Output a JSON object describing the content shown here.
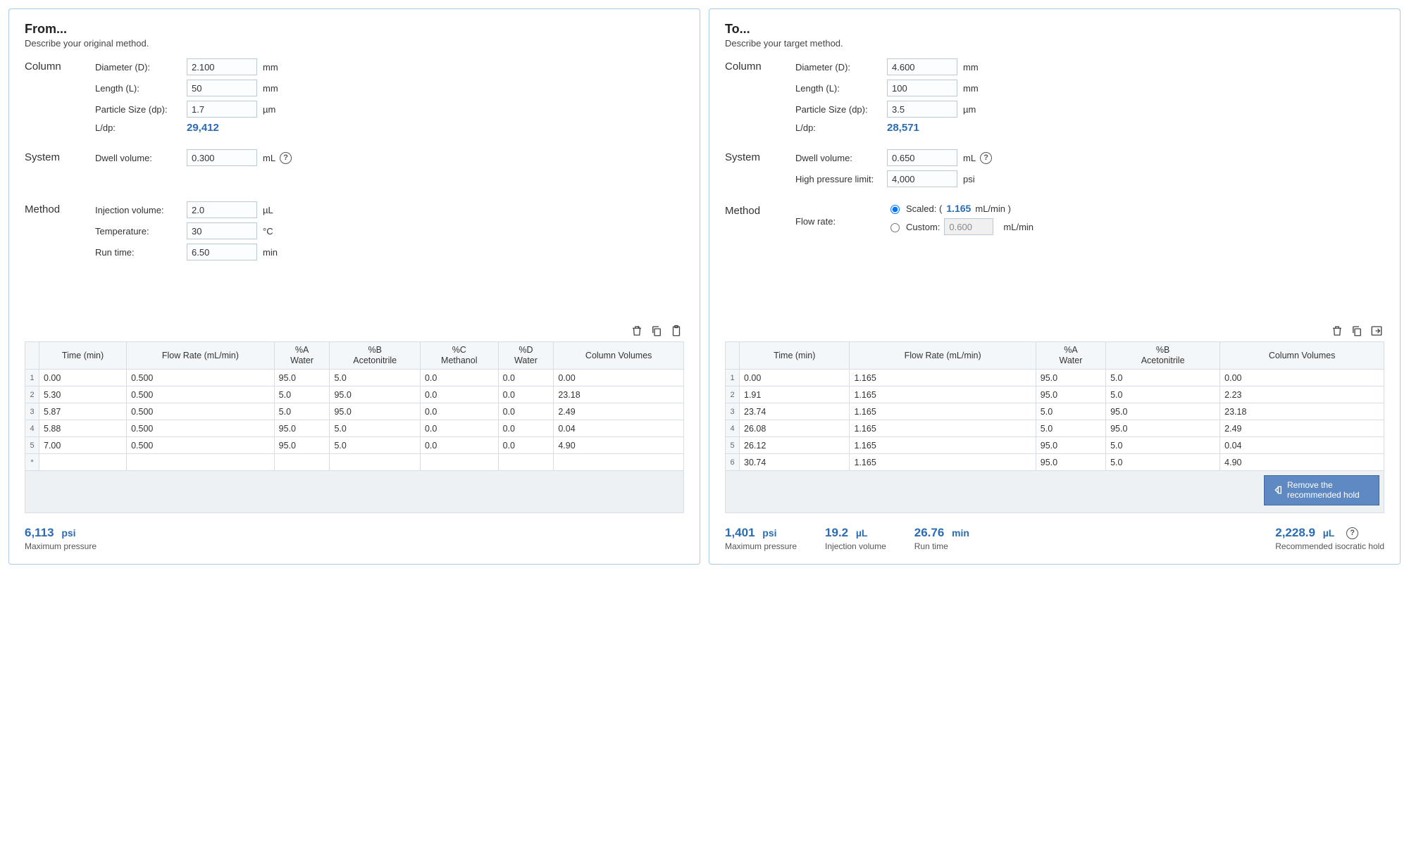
{
  "from": {
    "title": "From...",
    "subtitle": "Describe your original method.",
    "column": {
      "heading": "Column",
      "diameter_label": "Diameter (D):",
      "diameter_value": "2.100",
      "diameter_unit": "mm",
      "length_label": "Length (L):",
      "length_value": "50",
      "length_unit": "mm",
      "particle_label": "Particle Size (dp):",
      "particle_value": "1.7",
      "particle_unit": "µm",
      "ldp_label": "L/dp:",
      "ldp_value": "29,412"
    },
    "system": {
      "heading": "System",
      "dwell_label": "Dwell volume:",
      "dwell_value": "0.300",
      "dwell_unit": "mL"
    },
    "method": {
      "heading": "Method",
      "inj_label": "Injection volume:",
      "inj_value": "2.0",
      "inj_unit": "µL",
      "temp_label": "Temperature:",
      "temp_value": "30",
      "temp_unit": "°C",
      "runtime_label": "Run time:",
      "runtime_value": "6.50",
      "runtime_unit": "min"
    },
    "table": {
      "headers": {
        "time": "Time (min)",
        "flow": "Flow Rate (mL/min)",
        "a_top": "%A",
        "a_bot": "Water",
        "b_top": "%B",
        "b_bot": "Acetonitrile",
        "c_top": "%C",
        "c_bot": "Methanol",
        "d_top": "%D",
        "d_bot": "Water",
        "cv": "Column Volumes"
      },
      "rows": [
        {
          "n": "1",
          "time": "0.00",
          "flow": "0.500",
          "a": "95.0",
          "b": "5.0",
          "c": "0.0",
          "d": "0.0",
          "cv": "0.00"
        },
        {
          "n": "2",
          "time": "5.30",
          "flow": "0.500",
          "a": "5.0",
          "b": "95.0",
          "c": "0.0",
          "d": "0.0",
          "cv": "23.18"
        },
        {
          "n": "3",
          "time": "5.87",
          "flow": "0.500",
          "a": "5.0",
          "b": "95.0",
          "c": "0.0",
          "d": "0.0",
          "cv": "2.49"
        },
        {
          "n": "4",
          "time": "5.88",
          "flow": "0.500",
          "a": "95.0",
          "b": "5.0",
          "c": "0.0",
          "d": "0.0",
          "cv": "0.04"
        },
        {
          "n": "5",
          "time": "7.00",
          "flow": "0.500",
          "a": "95.0",
          "b": "5.0",
          "c": "0.0",
          "d": "0.0",
          "cv": "4.90"
        }
      ],
      "blank_n": "*"
    },
    "footer": {
      "maxp_value": "6,113",
      "maxp_unit": "psi",
      "maxp_label": "Maximum pressure"
    }
  },
  "to": {
    "title": "To...",
    "subtitle": "Describe your target method.",
    "column": {
      "heading": "Column",
      "diameter_label": "Diameter (D):",
      "diameter_value": "4.600",
      "diameter_unit": "mm",
      "length_label": "Length (L):",
      "length_value": "100",
      "length_unit": "mm",
      "particle_label": "Particle Size (dp):",
      "particle_value": "3.5",
      "particle_unit": "µm",
      "ldp_label": "L/dp:",
      "ldp_value": "28,571"
    },
    "system": {
      "heading": "System",
      "dwell_label": "Dwell volume:",
      "dwell_value": "0.650",
      "dwell_unit": "mL",
      "hpl_label": "High pressure limit:",
      "hpl_value": "4,000",
      "hpl_unit": "psi"
    },
    "method": {
      "heading": "Method",
      "flow_label": "Flow rate:",
      "scaled_prefix": "Scaled: (",
      "scaled_value": "1.165",
      "scaled_suffix_unit": " mL/min )",
      "custom_label": "Custom:",
      "custom_value": "0.600",
      "custom_unit": "mL/min"
    },
    "table": {
      "headers": {
        "time": "Time (min)",
        "flow": "Flow Rate (mL/min)",
        "a_top": "%A",
        "a_bot": "Water",
        "b_top": "%B",
        "b_bot": "Acetonitrile",
        "cv": "Column Volumes"
      },
      "rows": [
        {
          "n": "1",
          "time": "0.00",
          "flow": "1.165",
          "a": "95.0",
          "b": "5.0",
          "cv": "0.00"
        },
        {
          "n": "2",
          "time": "1.91",
          "flow": "1.165",
          "a": "95.0",
          "b": "5.0",
          "cv": "2.23"
        },
        {
          "n": "3",
          "time": "23.74",
          "flow": "1.165",
          "a": "5.0",
          "b": "95.0",
          "cv": "23.18"
        },
        {
          "n": "4",
          "time": "26.08",
          "flow": "1.165",
          "a": "5.0",
          "b": "95.0",
          "cv": "2.49"
        },
        {
          "n": "5",
          "time": "26.12",
          "flow": "1.165",
          "a": "95.0",
          "b": "5.0",
          "cv": "0.04"
        },
        {
          "n": "6",
          "time": "30.74",
          "flow": "1.165",
          "a": "95.0",
          "b": "5.0",
          "cv": "4.90"
        }
      ]
    },
    "remove_btn": "Remove the recommended hold",
    "footer": {
      "maxp_value": "1,401",
      "maxp_unit": "psi",
      "maxp_label": "Maximum pressure",
      "inj_value": "19.2",
      "inj_unit": "µL",
      "inj_label": "Injection volume",
      "rt_value": "26.76",
      "rt_unit": "min",
      "rt_label": "Run time",
      "iso_value": "2,228.9",
      "iso_unit": "µL",
      "iso_label": "Recommended isocratic hold"
    }
  }
}
